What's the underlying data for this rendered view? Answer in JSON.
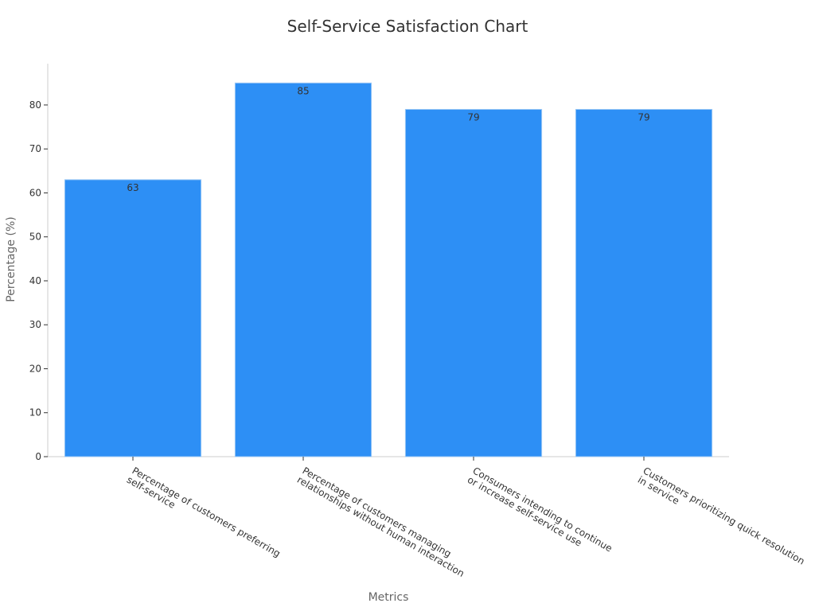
{
  "chart_data": {
    "type": "bar",
    "title": "Self-Service Satisfaction Chart",
    "x_label": "Metrics",
    "y_label": "Percentage (%)",
    "categories": [
      "Percentage of customers preferring\nself-service",
      "Percentage of customers managing\nrelationships without human interaction",
      "Consumers intending to continue\nor increase self-service use",
      "Customers prioritizing quick resolution\nin service"
    ],
    "values": [
      63,
      85,
      79,
      79
    ],
    "color": "#2d8ff5",
    "ylim": [
      0,
      89.4
    ],
    "yticks": [
      0,
      10,
      20,
      30,
      40,
      50,
      60,
      70,
      80
    ],
    "grid": false
  }
}
